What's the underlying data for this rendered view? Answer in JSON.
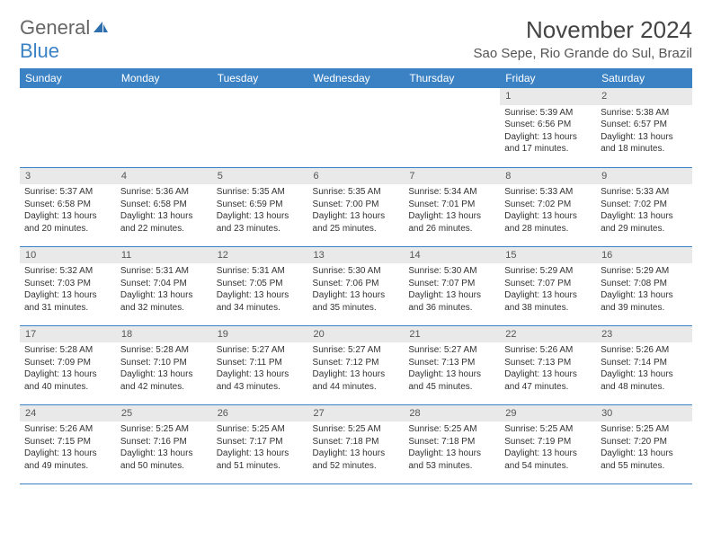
{
  "branding": {
    "word1": "General",
    "word2": "Blue",
    "logo_color": "#2f6fae"
  },
  "header": {
    "month_title": "November 2024",
    "location": "Sao Sepe, Rio Grande do Sul, Brazil"
  },
  "colors": {
    "header_bg": "#3b82c4",
    "header_fg": "#ffffff",
    "daynum_bg": "#e9e9e9",
    "row_border": "#3b82c4",
    "text": "#333333"
  },
  "day_labels": [
    "Sunday",
    "Monday",
    "Tuesday",
    "Wednesday",
    "Thursday",
    "Friday",
    "Saturday"
  ],
  "weeks": [
    [
      {
        "n": "",
        "empty": true
      },
      {
        "n": "",
        "empty": true
      },
      {
        "n": "",
        "empty": true
      },
      {
        "n": "",
        "empty": true
      },
      {
        "n": "",
        "empty": true
      },
      {
        "n": "1",
        "sunrise": "Sunrise: 5:39 AM",
        "sunset": "Sunset: 6:56 PM",
        "daylight": "Daylight: 13 hours and 17 minutes."
      },
      {
        "n": "2",
        "sunrise": "Sunrise: 5:38 AM",
        "sunset": "Sunset: 6:57 PM",
        "daylight": "Daylight: 13 hours and 18 minutes."
      }
    ],
    [
      {
        "n": "3",
        "sunrise": "Sunrise: 5:37 AM",
        "sunset": "Sunset: 6:58 PM",
        "daylight": "Daylight: 13 hours and 20 minutes."
      },
      {
        "n": "4",
        "sunrise": "Sunrise: 5:36 AM",
        "sunset": "Sunset: 6:58 PM",
        "daylight": "Daylight: 13 hours and 22 minutes."
      },
      {
        "n": "5",
        "sunrise": "Sunrise: 5:35 AM",
        "sunset": "Sunset: 6:59 PM",
        "daylight": "Daylight: 13 hours and 23 minutes."
      },
      {
        "n": "6",
        "sunrise": "Sunrise: 5:35 AM",
        "sunset": "Sunset: 7:00 PM",
        "daylight": "Daylight: 13 hours and 25 minutes."
      },
      {
        "n": "7",
        "sunrise": "Sunrise: 5:34 AM",
        "sunset": "Sunset: 7:01 PM",
        "daylight": "Daylight: 13 hours and 26 minutes."
      },
      {
        "n": "8",
        "sunrise": "Sunrise: 5:33 AM",
        "sunset": "Sunset: 7:02 PM",
        "daylight": "Daylight: 13 hours and 28 minutes."
      },
      {
        "n": "9",
        "sunrise": "Sunrise: 5:33 AM",
        "sunset": "Sunset: 7:02 PM",
        "daylight": "Daylight: 13 hours and 29 minutes."
      }
    ],
    [
      {
        "n": "10",
        "sunrise": "Sunrise: 5:32 AM",
        "sunset": "Sunset: 7:03 PM",
        "daylight": "Daylight: 13 hours and 31 minutes."
      },
      {
        "n": "11",
        "sunrise": "Sunrise: 5:31 AM",
        "sunset": "Sunset: 7:04 PM",
        "daylight": "Daylight: 13 hours and 32 minutes."
      },
      {
        "n": "12",
        "sunrise": "Sunrise: 5:31 AM",
        "sunset": "Sunset: 7:05 PM",
        "daylight": "Daylight: 13 hours and 34 minutes."
      },
      {
        "n": "13",
        "sunrise": "Sunrise: 5:30 AM",
        "sunset": "Sunset: 7:06 PM",
        "daylight": "Daylight: 13 hours and 35 minutes."
      },
      {
        "n": "14",
        "sunrise": "Sunrise: 5:30 AM",
        "sunset": "Sunset: 7:07 PM",
        "daylight": "Daylight: 13 hours and 36 minutes."
      },
      {
        "n": "15",
        "sunrise": "Sunrise: 5:29 AM",
        "sunset": "Sunset: 7:07 PM",
        "daylight": "Daylight: 13 hours and 38 minutes."
      },
      {
        "n": "16",
        "sunrise": "Sunrise: 5:29 AM",
        "sunset": "Sunset: 7:08 PM",
        "daylight": "Daylight: 13 hours and 39 minutes."
      }
    ],
    [
      {
        "n": "17",
        "sunrise": "Sunrise: 5:28 AM",
        "sunset": "Sunset: 7:09 PM",
        "daylight": "Daylight: 13 hours and 40 minutes."
      },
      {
        "n": "18",
        "sunrise": "Sunrise: 5:28 AM",
        "sunset": "Sunset: 7:10 PM",
        "daylight": "Daylight: 13 hours and 42 minutes."
      },
      {
        "n": "19",
        "sunrise": "Sunrise: 5:27 AM",
        "sunset": "Sunset: 7:11 PM",
        "daylight": "Daylight: 13 hours and 43 minutes."
      },
      {
        "n": "20",
        "sunrise": "Sunrise: 5:27 AM",
        "sunset": "Sunset: 7:12 PM",
        "daylight": "Daylight: 13 hours and 44 minutes."
      },
      {
        "n": "21",
        "sunrise": "Sunrise: 5:27 AM",
        "sunset": "Sunset: 7:13 PM",
        "daylight": "Daylight: 13 hours and 45 minutes."
      },
      {
        "n": "22",
        "sunrise": "Sunrise: 5:26 AM",
        "sunset": "Sunset: 7:13 PM",
        "daylight": "Daylight: 13 hours and 47 minutes."
      },
      {
        "n": "23",
        "sunrise": "Sunrise: 5:26 AM",
        "sunset": "Sunset: 7:14 PM",
        "daylight": "Daylight: 13 hours and 48 minutes."
      }
    ],
    [
      {
        "n": "24",
        "sunrise": "Sunrise: 5:26 AM",
        "sunset": "Sunset: 7:15 PM",
        "daylight": "Daylight: 13 hours and 49 minutes."
      },
      {
        "n": "25",
        "sunrise": "Sunrise: 5:25 AM",
        "sunset": "Sunset: 7:16 PM",
        "daylight": "Daylight: 13 hours and 50 minutes."
      },
      {
        "n": "26",
        "sunrise": "Sunrise: 5:25 AM",
        "sunset": "Sunset: 7:17 PM",
        "daylight": "Daylight: 13 hours and 51 minutes."
      },
      {
        "n": "27",
        "sunrise": "Sunrise: 5:25 AM",
        "sunset": "Sunset: 7:18 PM",
        "daylight": "Daylight: 13 hours and 52 minutes."
      },
      {
        "n": "28",
        "sunrise": "Sunrise: 5:25 AM",
        "sunset": "Sunset: 7:18 PM",
        "daylight": "Daylight: 13 hours and 53 minutes."
      },
      {
        "n": "29",
        "sunrise": "Sunrise: 5:25 AM",
        "sunset": "Sunset: 7:19 PM",
        "daylight": "Daylight: 13 hours and 54 minutes."
      },
      {
        "n": "30",
        "sunrise": "Sunrise: 5:25 AM",
        "sunset": "Sunset: 7:20 PM",
        "daylight": "Daylight: 13 hours and 55 minutes."
      }
    ]
  ]
}
